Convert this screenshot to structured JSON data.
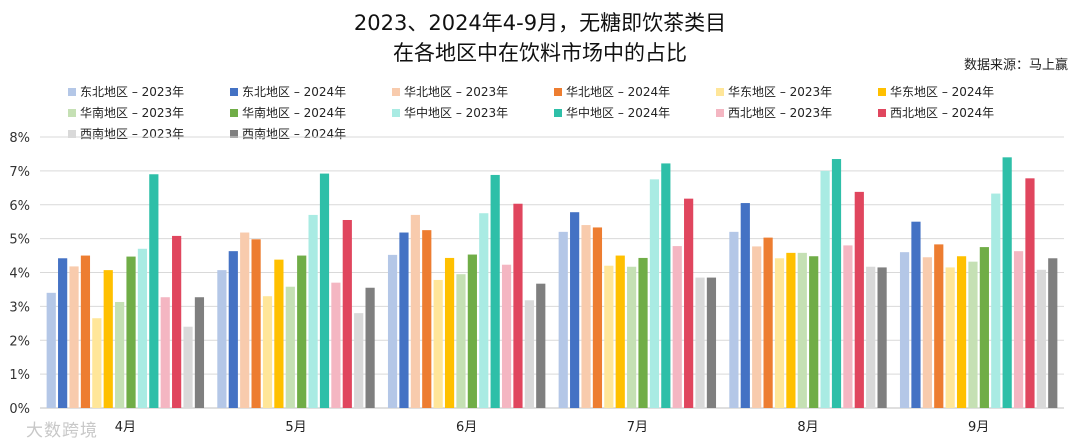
{
  "chart_data": {
    "type": "bar",
    "title_lines": [
      "2023、2024年4-9月，无糖即饮茶类目",
      "在各地区中在饮料市场中的占比"
    ],
    "source": "数据来源：马上赢",
    "categories": [
      "4月",
      "5月",
      "6月",
      "7月",
      "8月",
      "9月"
    ],
    "y_ticks": [
      "0%",
      "1%",
      "2%",
      "3%",
      "4%",
      "5%",
      "6%",
      "7%",
      "8%"
    ],
    "ylim": [
      0,
      8
    ],
    "grid": true,
    "legend_position": "top",
    "series": [
      {
        "name": "东北地区 – 2023年",
        "color": "#b4c7e7",
        "values": [
          3.4,
          4.07,
          4.52,
          5.2,
          5.2,
          4.6
        ]
      },
      {
        "name": "东北地区 – 2024年",
        "color": "#4472c4",
        "values": [
          4.42,
          4.63,
          5.18,
          5.78,
          6.05,
          5.5
        ]
      },
      {
        "name": "华北地区 – 2023年",
        "color": "#f8cbad",
        "values": [
          4.18,
          5.18,
          5.7,
          5.4,
          4.77,
          4.45
        ]
      },
      {
        "name": "华北地区 – 2024年",
        "color": "#ed7d31",
        "values": [
          4.5,
          4.98,
          5.25,
          5.33,
          5.03,
          4.83
        ]
      },
      {
        "name": "华东地区 – 2023年",
        "color": "#ffe699",
        "values": [
          2.65,
          3.3,
          3.78,
          4.2,
          4.42,
          4.15
        ]
      },
      {
        "name": "华东地区 – 2024年",
        "color": "#ffc000",
        "values": [
          4.07,
          4.38,
          4.43,
          4.5,
          4.58,
          4.48
        ]
      },
      {
        "name": "华南地区 – 2023年",
        "color": "#c5e0b4",
        "values": [
          3.13,
          3.58,
          3.95,
          4.17,
          4.58,
          4.32
        ]
      },
      {
        "name": "华南地区 – 2024年",
        "color": "#70ad47",
        "values": [
          4.47,
          4.5,
          4.53,
          4.43,
          4.48,
          4.75
        ]
      },
      {
        "name": "华中地区 – 2023年",
        "color": "#a9ebe3",
        "values": [
          4.7,
          5.7,
          5.75,
          6.75,
          7.0,
          6.33
        ]
      },
      {
        "name": "华中地区 – 2024年",
        "color": "#2ebfa8",
        "values": [
          6.9,
          6.92,
          6.88,
          7.22,
          7.35,
          7.4
        ]
      },
      {
        "name": "西北地区 – 2023年",
        "color": "#f4b6c2",
        "values": [
          3.27,
          3.7,
          4.23,
          4.78,
          4.8,
          4.63
        ]
      },
      {
        "name": "西北地区 – 2024年",
        "color": "#e0465e",
        "values": [
          5.08,
          5.55,
          6.03,
          6.18,
          6.38,
          6.78
        ]
      },
      {
        "name": "西南地区 – 2023年",
        "color": "#d9d9d9",
        "values": [
          2.4,
          2.8,
          3.18,
          3.85,
          4.17,
          4.08
        ]
      },
      {
        "name": "西南地区 – 2024年",
        "color": "#7f7f7f",
        "values": [
          3.27,
          3.55,
          3.67,
          3.85,
          4.15,
          4.42
        ]
      }
    ]
  },
  "watermark": "大数跨境"
}
